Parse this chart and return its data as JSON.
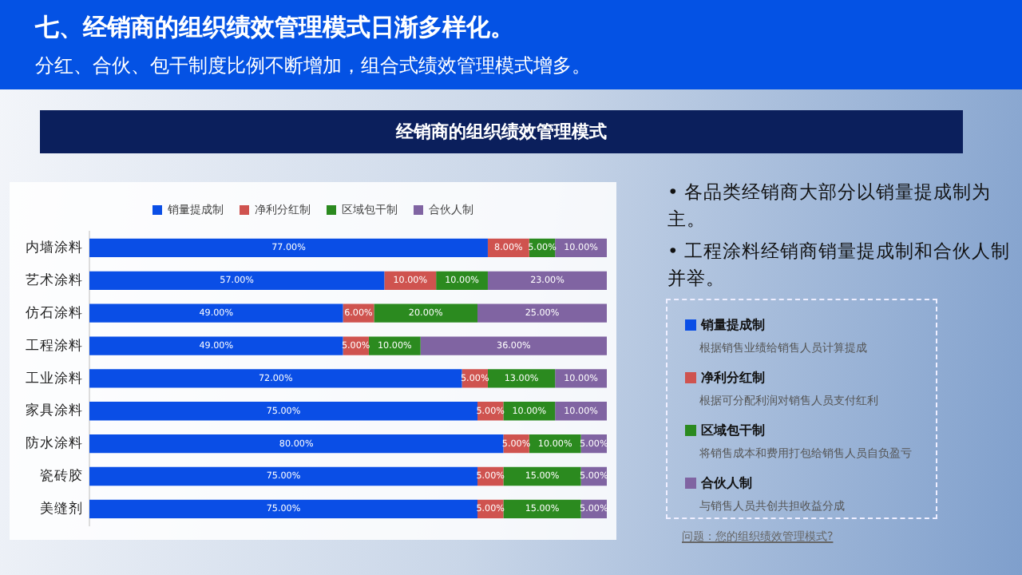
{
  "chart_data": {
    "type": "bar",
    "orientation": "horizontal",
    "stacked": true,
    "title": "七、经销商的组织绩效管理模式日渐多样化。",
    "subtitle": "分红、合伙、包干制度比例不断增加，组合式绩效管理模式增多。",
    "annotations": [
      "经销商的组织绩效管理模式",
      "• 各品类经销商大部分以销量提成制为主。",
      "• 工程涂料经销商销量提成制和合伙人制并举。",
      "根据销售业绩给销售人员计算提成",
      "根据可分配利润对销售人员支付红利",
      "将销售成本和费用打包给销售人员自负盈亏",
      "与销售人员共创共担收益分成",
      "问题：您的组织绩效管理模式?"
    ],
    "categories": [
      "内墙涂料",
      "艺术涂料",
      "仿石涂料",
      "工程涂料",
      "工业涂料",
      "家具涂料",
      "防水涂料",
      "瓷砖胶",
      "美缝剂"
    ],
    "xlim": [
      0,
      100
    ],
    "tick_labels": "y",
    "grid": false,
    "legend": "top",
    "series": [
      {
        "name": "销量提成制",
        "color": "#0a4ee6",
        "values": [
          77,
          57,
          49,
          49,
          72,
          75,
          80,
          75,
          75
        ],
        "value_labels": [
          "77.00%",
          "57.00%",
          "49.00%",
          "49.00%",
          "72.00%",
          "75.00%",
          "80.00%",
          "75.00%",
          "75.00%"
        ]
      },
      {
        "name": "净利分红制",
        "color": "#cf534f",
        "values": [
          8,
          10,
          6,
          5,
          5,
          5,
          5,
          5,
          5
        ],
        "value_labels": [
          "8.00%",
          "10.00%",
          "6.00%",
          "5.00%",
          "5.00%",
          "5.00%",
          "5.00%",
          "5.00%",
          "5.00%"
        ]
      },
      {
        "name": "区域包干制",
        "color": "#2b8a1f",
        "values": [
          5,
          10,
          20,
          10,
          13,
          10,
          10,
          15,
          15
        ],
        "value_labels": [
          "5.00%",
          "10.00%",
          "20.00%",
          "10.00%",
          "13.00%",
          "10.00%",
          "10.00%",
          "15.00%",
          "15.00%"
        ]
      },
      {
        "name": "合伙人制",
        "color": "#8064a2",
        "values": [
          10,
          23,
          25,
          36,
          10,
          10,
          5,
          5,
          5
        ],
        "value_labels": [
          "10.00%",
          "23.00%",
          "25.00%",
          "36.00%",
          "10.00%",
          "10.00%",
          "5.00%",
          "5.00%",
          "5.00%"
        ]
      }
    ]
  }
}
